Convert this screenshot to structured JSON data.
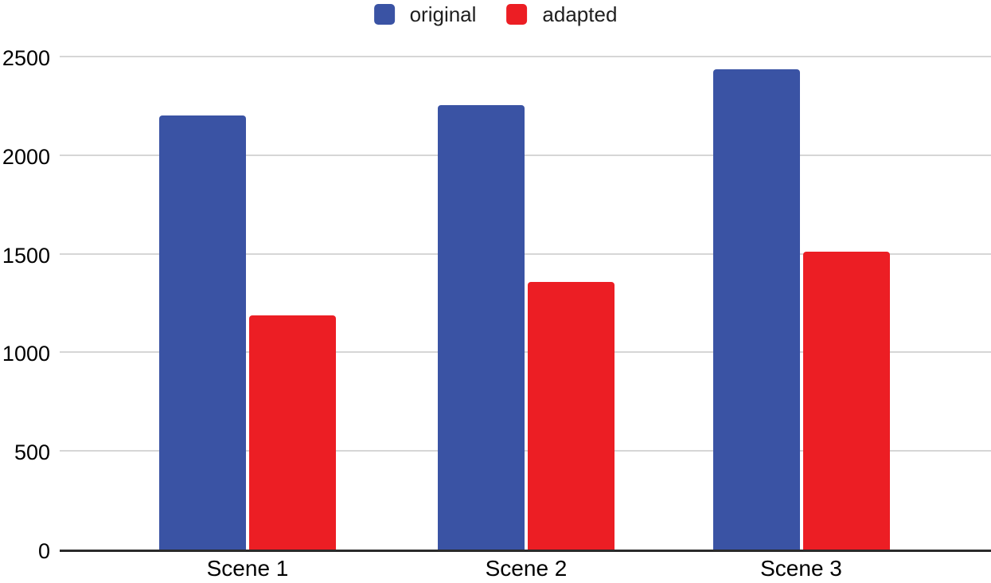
{
  "chart_data": {
    "type": "bar",
    "title": "",
    "xlabel": "",
    "ylabel": "",
    "categories": [
      "Scene 1",
      "Scene 2",
      "Scene 3"
    ],
    "series": [
      {
        "name": "original",
        "color": "#3A53A4",
        "values": [
          2210,
          2260,
          2445
        ]
      },
      {
        "name": "adapted",
        "color": "#EC1E24",
        "values": [
          1195,
          1365,
          1520
        ]
      }
    ],
    "ylim": [
      0,
      2500
    ],
    "yticks": [
      0,
      500,
      1000,
      1500,
      2000,
      2500
    ],
    "ytick_labels": [
      "0",
      "500",
      "1000",
      "1500",
      "2000",
      "2500"
    ],
    "grid": true,
    "legend_position": "top-center",
    "colors": {
      "background": "#ffffff",
      "gridline": "#d6d6d6",
      "axis_line": "#2a2a2a",
      "text": "#000000"
    }
  }
}
